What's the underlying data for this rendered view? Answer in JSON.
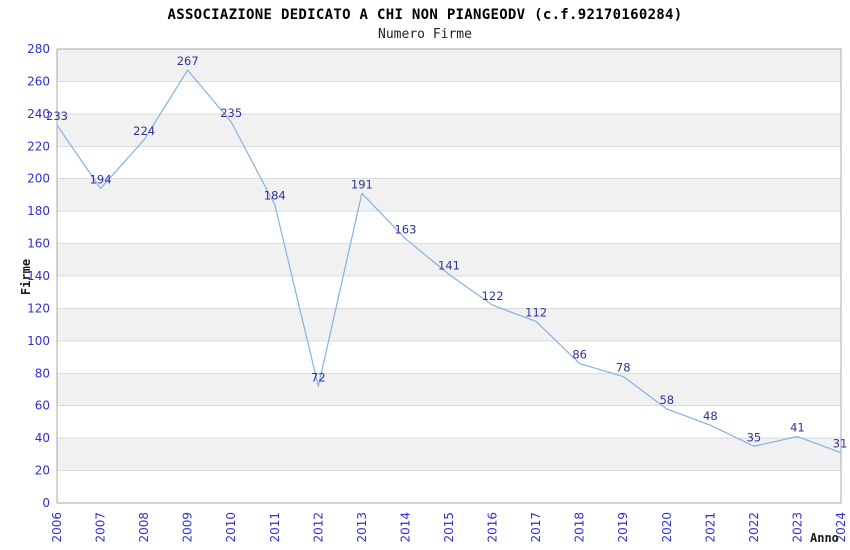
{
  "chart_data": {
    "type": "line",
    "title": "ASSOCIAZIONE DEDICATO A CHI NON PIANGEODV (c.f.92170160284)",
    "subtitle": "Numero Firme",
    "xlabel": "Anno",
    "ylabel": "Firme",
    "categories": [
      "2006",
      "2007",
      "2008",
      "2009",
      "2010",
      "2011",
      "2012",
      "2013",
      "2014",
      "2015",
      "2016",
      "2017",
      "2018",
      "2019",
      "2020",
      "2021",
      "2022",
      "2023",
      "2024"
    ],
    "series": [
      {
        "name": "Numero Firme",
        "values": [
          233,
          194,
          224,
          267,
          235,
          184,
          72,
          191,
          163,
          141,
          122,
          112,
          86,
          78,
          58,
          48,
          35,
          41,
          31
        ]
      }
    ],
    "ylim": [
      0,
      280
    ],
    "ytick_step": 20,
    "grid": "horizontal-only",
    "band_stripes": "alternating gray bands every 20 units, gray on 20-40, 60-80, 100-120, 140-160, 180-200, 220-240, 260-280",
    "legend": "none",
    "x_tick_rotation": -90,
    "data_labels_shown": true,
    "colors": {
      "line": "#85b2e1",
      "tick_label": "#2f2fd6",
      "data_label": "#32329b",
      "band": "#f1f1f1",
      "gridline": "#dcdcdc",
      "plot_border": "#a9a9a9",
      "plot_background": "#ffffff",
      "title_text": "#000000",
      "subtitle_text": "#222222",
      "axis_title_text": "#1a1a1a"
    }
  }
}
